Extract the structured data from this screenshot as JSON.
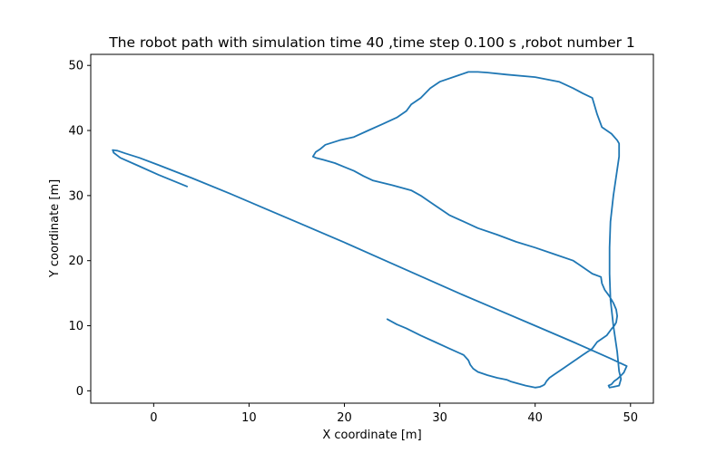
{
  "chart_data": {
    "type": "line",
    "title": "The robot path with simulation time 40 ,time step 0.100 s ,robot number 1",
    "xlabel": "X coordinate [m]",
    "ylabel": "Y coordinate [m]",
    "xlim": [
      -6.6,
      52.4
    ],
    "ylim": [
      -1.9,
      51.7
    ],
    "xticks": [
      0,
      10,
      20,
      30,
      40,
      50
    ],
    "yticks": [
      0,
      10,
      20,
      30,
      40,
      50
    ],
    "grid": false,
    "line_color": "#1f77b4",
    "series": [
      {
        "x": [
          3.5,
          0.5,
          -1.5,
          -3.5,
          -4.2,
          -4.3,
          -3.8,
          -3.0,
          -1.5,
          0.5,
          4.0,
          8.0,
          12.0,
          16.0,
          20.0,
          24.0,
          28.0,
          32.0,
          36.0,
          40.0,
          44.0,
          48.0,
          49.6,
          49.3,
          48.9,
          48.6,
          48.3,
          48.0,
          47.7,
          47.8,
          48.2,
          48.8,
          49.0,
          48.8,
          48.6,
          48.2,
          47.9,
          47.8,
          47.8,
          47.9,
          48.2,
          48.6,
          48.8,
          48.8,
          48.6,
          48.0,
          47.0,
          46.5,
          46.0,
          45.0,
          44.0,
          42.5,
          40.0,
          37.0,
          35.0,
          34.0,
          33.0,
          32.0,
          30.0,
          29.0,
          28.0,
          27.0,
          26.5,
          25.5,
          24.0,
          22.5,
          21.0,
          19.5,
          18.0,
          17.5,
          17.0,
          16.7,
          17.0,
          17.8,
          19.0,
          20.0,
          21.0,
          22.0,
          23.0,
          25.0,
          27.0,
          28.0,
          29.0,
          30.0,
          31.0,
          32.5,
          34.0,
          36.0,
          38.0,
          40.0,
          42.0,
          44.0,
          45.0,
          46.0,
          46.9,
          47.0,
          47.3,
          47.8,
          48.2,
          48.5,
          48.6,
          48.5,
          48.3,
          48.0,
          47.5,
          46.5,
          46.0,
          45.0,
          44.0,
          43.0,
          42.0,
          41.5,
          41.2,
          41.0,
          40.8,
          40.5,
          40.0,
          39.0,
          38.0,
          37.5,
          37.0,
          36.0,
          35.0,
          34.0,
          33.5,
          33.2,
          33.0,
          32.5,
          31.0,
          29.5,
          28.0,
          26.5,
          25.5,
          24.5
        ],
        "y": [
          31.4,
          33.2,
          34.5,
          35.8,
          36.6,
          37.0,
          36.9,
          36.5,
          35.8,
          34.7,
          32.7,
          30.3,
          27.8,
          25.3,
          22.8,
          20.2,
          17.6,
          15.0,
          12.5,
          10.0,
          7.5,
          4.9,
          3.8,
          2.8,
          2.2,
          1.8,
          1.5,
          1.0,
          0.8,
          0.5,
          0.6,
          0.8,
          1.8,
          3.0,
          6.0,
          10.0,
          14.0,
          18.0,
          22.0,
          26.0,
          30.0,
          34.0,
          36.0,
          38.0,
          38.5,
          39.5,
          40.5,
          42.5,
          45.0,
          45.7,
          46.5,
          47.5,
          48.2,
          48.6,
          48.9,
          49.0,
          49.0,
          48.5,
          47.5,
          46.5,
          45.0,
          44.0,
          43.0,
          42.0,
          41.0,
          40.0,
          39.0,
          38.5,
          37.8,
          37.2,
          36.7,
          36.0,
          35.8,
          35.5,
          35.0,
          34.4,
          33.8,
          33.0,
          32.3,
          31.6,
          30.8,
          30.0,
          29.0,
          28.0,
          27.0,
          26.0,
          25.0,
          24.0,
          22.9,
          22.0,
          21.0,
          20.0,
          19.0,
          18.0,
          17.5,
          16.5,
          15.5,
          14.5,
          13.5,
          12.5,
          11.5,
          10.5,
          10.0,
          9.5,
          8.5,
          7.5,
          6.5,
          5.5,
          4.5,
          3.5,
          2.5,
          2.0,
          1.5,
          1.0,
          0.8,
          0.6,
          0.5,
          0.8,
          1.2,
          1.4,
          1.7,
          2.0,
          2.4,
          2.9,
          3.4,
          4.0,
          4.7,
          5.5,
          6.5,
          7.5,
          8.5,
          9.6,
          10.2,
          11.0
        ]
      }
    ]
  }
}
